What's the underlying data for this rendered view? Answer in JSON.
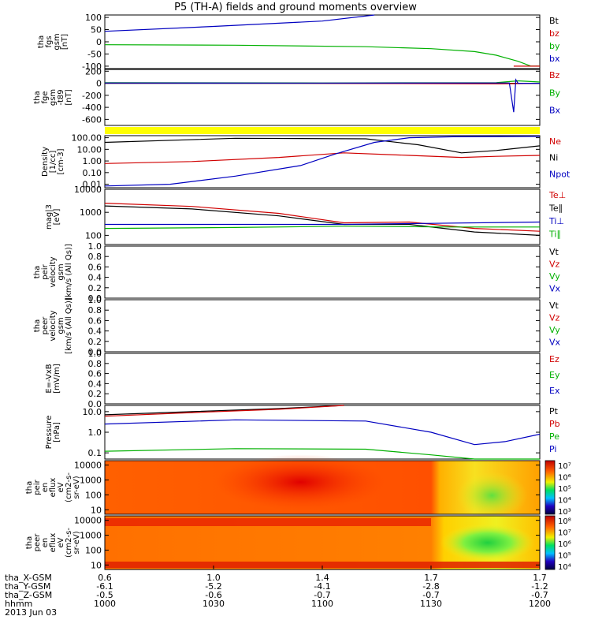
{
  "title": "P5 (TH-A) fields and ground moments overview",
  "chart_data": {
    "type": "line",
    "panels": [
      {
        "id": "fgs",
        "ylabel": [
          "tha",
          "fgs",
          "gsm",
          "[nT]"
        ],
        "ticks": [
          "100",
          "50",
          "0",
          "-50",
          "-100"
        ],
        "ylim": [
          -110,
          110
        ],
        "log": false,
        "legend": [
          {
            "label": "Bt",
            "color": "#000000"
          },
          {
            "label": "bz",
            "color": "#d00000"
          },
          {
            "label": "by",
            "color": "#00b000"
          },
          {
            "label": "bx",
            "color": "#0000c0"
          }
        ],
        "series": [
          {
            "color": "#0000c0",
            "x": [
              0,
              0.25,
              0.5,
              0.62
            ],
            "y": [
              43,
              63,
              85,
              110
            ]
          },
          {
            "color": "#00b000",
            "x": [
              0,
              0.3,
              0.6,
              0.75,
              0.85,
              0.9,
              0.95,
              0.98,
              1.0
            ],
            "y": [
              -12,
              -14,
              -20,
              -28,
              -40,
              -55,
              -80,
              -100,
              -100
            ]
          },
          {
            "color": "#d00000",
            "x": [
              0.94,
              0.97,
              1.0
            ],
            "y": [
              -100,
              -100,
              -100
            ]
          }
        ]
      },
      {
        "id": "fge",
        "ylabel": [
          "tha",
          "fge",
          "gsm",
          "-t89",
          "[nT]"
        ],
        "ticks": [
          "200",
          "0",
          "-200",
          "-400",
          "-600"
        ],
        "ylim": [
          -700,
          230
        ],
        "log": false,
        "legend": [
          {
            "label": "Bz",
            "color": "#d00000"
          },
          {
            "label": "By",
            "color": "#00b000"
          },
          {
            "label": "Bx",
            "color": "#0000c0"
          }
        ],
        "series": [
          {
            "color": "#000000",
            "x": [
              0,
              0.5,
              0.9,
              1.0
            ],
            "y": [
              0,
              0,
              0,
              0
            ]
          },
          {
            "color": "#d00000",
            "x": [
              0,
              0.5,
              0.9,
              1.0
            ],
            "y": [
              5,
              0,
              -10,
              0
            ]
          },
          {
            "color": "#00b000",
            "x": [
              0,
              0.5,
              0.9,
              0.95,
              1.0
            ],
            "y": [
              10,
              5,
              10,
              40,
              20
            ]
          },
          {
            "color": "#0000c0",
            "x": [
              0,
              0.5,
              0.93,
              0.94,
              0.945,
              0.95,
              1.0
            ],
            "y": [
              5,
              3,
              5,
              -480,
              60,
              0,
              0
            ]
          }
        ]
      },
      {
        "id": "density",
        "ylabel": [
          "Density",
          "[1/cc]",
          "[cm-3]"
        ],
        "ticks": [
          "100.00",
          "10.00",
          "1.00",
          "0.10",
          "0.01"
        ],
        "ylim": [
          0.005,
          150
        ],
        "log": true,
        "legend": [
          {
            "label": "Ne",
            "color": "#d00000"
          },
          {
            "label": "Ni",
            "color": "#000000"
          },
          {
            "label": "Npot",
            "color": "#0000c0"
          }
        ],
        "series": [
          {
            "color": "#000000",
            "x": [
              0,
              0.3,
              0.6,
              0.72,
              0.82,
              0.9,
              1.0
            ],
            "y": [
              40,
              90,
              80,
              25,
              5,
              8,
              20
            ]
          },
          {
            "color": "#d00000",
            "x": [
              0,
              0.2,
              0.4,
              0.55,
              0.7,
              0.82,
              0.9,
              1.0
            ],
            "y": [
              0.6,
              0.9,
              2,
              5,
              3,
              2,
              2.5,
              3
            ]
          },
          {
            "color": "#0000c0",
            "x": [
              0,
              0.15,
              0.3,
              0.45,
              0.53,
              0.62,
              0.7,
              0.8,
              1.0
            ],
            "y": [
              0.007,
              0.01,
              0.05,
              0.4,
              4,
              40,
              100,
              120,
              130
            ]
          }
        ]
      },
      {
        "id": "temp",
        "ylabel": [
          "mag|3",
          "[eV]"
        ],
        "ticks": [
          "10000",
          "1000",
          "100"
        ],
        "ylim": [
          40,
          10000
        ],
        "log": true,
        "legend": [
          {
            "label": "Te⊥",
            "color": "#d00000"
          },
          {
            "label": "Te∥",
            "color": "#000000"
          },
          {
            "label": "Ti⊥",
            "color": "#0000c0"
          },
          {
            "label": "Ti∥",
            "color": "#00b000"
          }
        ],
        "series": [
          {
            "color": "#d00000",
            "x": [
              0,
              0.2,
              0.4,
              0.55,
              0.7,
              0.85,
              1.0
            ],
            "y": [
              2500,
              1800,
              900,
              350,
              380,
              200,
              150
            ]
          },
          {
            "color": "#000000",
            "x": [
              0,
              0.2,
              0.4,
              0.55,
              0.7,
              0.85,
              1.0
            ],
            "y": [
              1900,
              1400,
              700,
              300,
              300,
              140,
              100
            ]
          },
          {
            "color": "#0000c0",
            "x": [
              0,
              0.4,
              0.55,
              0.75,
              1.0
            ],
            "y": [
              300,
              300,
              300,
              330,
              380
            ]
          },
          {
            "color": "#00b000",
            "x": [
              0,
              0.3,
              0.55,
              0.8,
              1.0
            ],
            "y": [
              200,
              220,
              250,
              230,
              230
            ]
          }
        ]
      },
      {
        "id": "vi",
        "ylabel": [
          "tha",
          "peir",
          "velocity",
          "gsm",
          "[km/s (All Qs)]"
        ],
        "ticks": [
          "1.0",
          "0.8",
          "0.6",
          "0.4",
          "0.2",
          "0.0"
        ],
        "ylim": [
          0,
          1
        ],
        "log": false,
        "legend": [
          {
            "label": "Vt",
            "color": "#000000"
          },
          {
            "label": "Vz",
            "color": "#d00000"
          },
          {
            "label": "Vy",
            "color": "#00b000"
          },
          {
            "label": "Vx",
            "color": "#0000c0"
          }
        ],
        "series": []
      },
      {
        "id": "ve",
        "ylabel": [
          "tha",
          "peer",
          "velocity",
          "gsm",
          "[km/s (All Qs)]"
        ],
        "ticks": [
          "1.0",
          "0.8",
          "0.6",
          "0.4",
          "0.2",
          "0.0"
        ],
        "ylim": [
          0,
          1
        ],
        "log": false,
        "legend": [
          {
            "label": "Vt",
            "color": "#000000"
          },
          {
            "label": "Vz",
            "color": "#d00000"
          },
          {
            "label": "Vy",
            "color": "#00b000"
          },
          {
            "label": "Vx",
            "color": "#0000c0"
          }
        ],
        "series": []
      },
      {
        "id": "efield",
        "ylabel": [
          "E=-VxB",
          "[mV/m]"
        ],
        "ticks": [
          "1.0",
          "0.8",
          "0.6",
          "0.4",
          "0.2",
          "0.0"
        ],
        "ylim": [
          0,
          1
        ],
        "log": false,
        "legend": [
          {
            "label": "Ez",
            "color": "#d00000"
          },
          {
            "label": "Ey",
            "color": "#00b000"
          },
          {
            "label": "Ex",
            "color": "#0000c0"
          }
        ],
        "series": []
      },
      {
        "id": "pressure",
        "ylabel": [
          "Pressure",
          "[nPa]"
        ],
        "ticks": [
          "10.0",
          "1.0",
          "0.1"
        ],
        "ylim": [
          0.05,
          20
        ],
        "log": true,
        "legend": [
          {
            "label": "Pt",
            "color": "#000000"
          },
          {
            "label": "Pb",
            "color": "#d00000"
          },
          {
            "label": "Pe",
            "color": "#00b000"
          },
          {
            "label": "Pi",
            "color": "#0000c0"
          }
        ],
        "series": [
          {
            "color": "#000000",
            "x": [
              0,
              0.2,
              0.4,
              0.55
            ],
            "y": [
              7,
              10,
              14,
              20
            ]
          },
          {
            "color": "#d00000",
            "x": [
              0,
              0.2,
              0.4,
              0.55
            ],
            "y": [
              6,
              9,
              13,
              20
            ]
          },
          {
            "color": "#0000c0",
            "x": [
              0,
              0.3,
              0.6,
              0.75,
              0.85,
              0.92,
              1.0
            ],
            "y": [
              2.5,
              4,
              3.5,
              1,
              0.25,
              0.35,
              0.8
            ]
          },
          {
            "color": "#00b000",
            "x": [
              0,
              0.3,
              0.6,
              0.75,
              0.85,
              1.0
            ],
            "y": [
              0.12,
              0.16,
              0.15,
              0.08,
              0.04,
              0.05
            ]
          }
        ]
      },
      {
        "id": "ion_spec",
        "ylabel": [
          "tha",
          "peir",
          "en",
          "eflux",
          "eV",
          "(cm2-s-",
          "sr-eV)"
        ],
        "ticks": [
          "10000",
          "1000",
          "100",
          "10"
        ],
        "ylim": [
          5,
          20000
        ],
        "log": true,
        "colorbar": {
          "ticks": [
            "10⁷",
            "10⁶",
            "10⁵",
            "10⁴",
            "10³"
          ]
        }
      },
      {
        "id": "ele_spec",
        "ylabel": [
          "tha",
          "peer",
          "en",
          "eflux",
          "eV",
          "(cm2-s-",
          "sr-eV)"
        ],
        "ticks": [
          "10000",
          "1000",
          "100",
          "10"
        ],
        "ylim": [
          5,
          20000
        ],
        "log": true,
        "colorbar": {
          "ticks": [
            "10⁸",
            "10⁷",
            "10⁶",
            "10⁵",
            "10⁴"
          ]
        }
      }
    ],
    "x_axis": {
      "row_labels": [
        "tha_X-GSM",
        "tha_Y-GSM",
        "tha_Z-GSM",
        "hhmm",
        "2013 Jun 03"
      ],
      "columns": [
        {
          "values": [
            "0.6",
            "-6.1",
            "-0.5",
            "1000"
          ]
        },
        {
          "values": [
            "1.0",
            "-5.2",
            "-0.6",
            "1030"
          ]
        },
        {
          "values": [
            "1.4",
            "-4.1",
            "-0.7",
            "1100"
          ]
        },
        {
          "values": [
            "1.7",
            "-2.8",
            "-0.7",
            "1130"
          ]
        },
        {
          "values": [
            "1.7",
            "-1.2",
            "-0.7",
            "1200"
          ]
        }
      ]
    }
  }
}
